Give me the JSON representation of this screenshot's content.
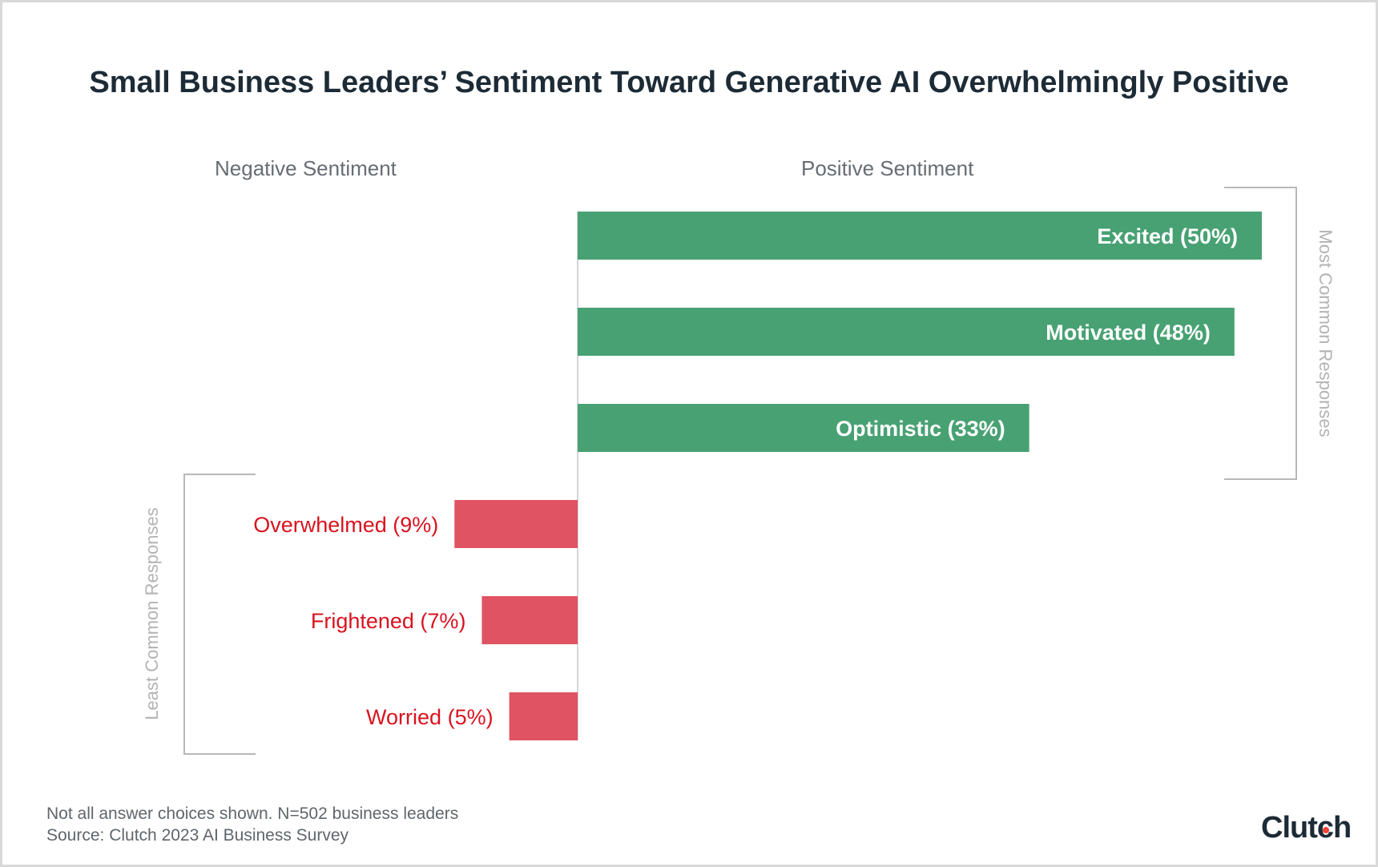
{
  "chart_data": {
    "type": "bar",
    "orientation": "horizontal-diverging",
    "title": "Small Business Leaders’ Sentiment Toward Generative AI Overwhelmingly Positive",
    "group_labels": {
      "negative": "Negative Sentiment",
      "positive": "Positive Sentiment"
    },
    "categories": [
      "Excited",
      "Motivated",
      "Optimistic",
      "Overwhelmed",
      "Frightened",
      "Worried"
    ],
    "values": [
      50,
      48,
      33,
      9,
      7,
      5
    ],
    "sentiment": [
      "positive",
      "positive",
      "positive",
      "negative",
      "negative",
      "negative"
    ],
    "data_labels": [
      "Excited (50%)",
      "Motivated (48%)",
      "Optimistic (33%)",
      "Overwhelmed (9%)",
      "Frightened (7%)",
      "Worried (5%)"
    ],
    "brackets": {
      "positive": "Most Common Responses",
      "negative": "Least Common Responses"
    },
    "colors": {
      "positive": "#48a173",
      "negative": "#e05362",
      "negative_label": "#d9131f",
      "axis": "#d6d6d6",
      "bracket": "#b8b8b8"
    },
    "unit": "%"
  },
  "footer": {
    "note": "Not all answer choices shown. N=502 business leaders",
    "source": "Source: Clutch 2023 AI Business Survey"
  },
  "logo": {
    "text": "Clutch"
  }
}
